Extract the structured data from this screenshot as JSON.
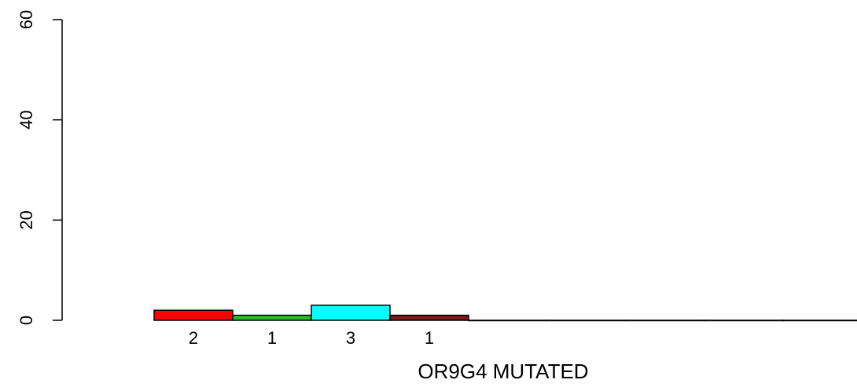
{
  "chart_data": {
    "type": "bar",
    "xlabel": "OR9G4 MUTATED",
    "ylabel": "",
    "ylim": [
      0,
      60
    ],
    "yticks": [
      0,
      20,
      40,
      60
    ],
    "grid": false,
    "categories": [
      "",
      "",
      "",
      "",
      "",
      "",
      "",
      "",
      ""
    ],
    "values": [
      2,
      1,
      3,
      1,
      0,
      0,
      0,
      0,
      0
    ],
    "bar_labels": [
      "2",
      "1",
      "3",
      "1",
      "",
      "",
      "",
      "",
      ""
    ],
    "colors": [
      "#ff0000",
      "#22c322",
      "#00ffff",
      "#7a1a1a",
      "#000000",
      "#000000",
      "#000000",
      "#000000",
      "#000000"
    ]
  }
}
